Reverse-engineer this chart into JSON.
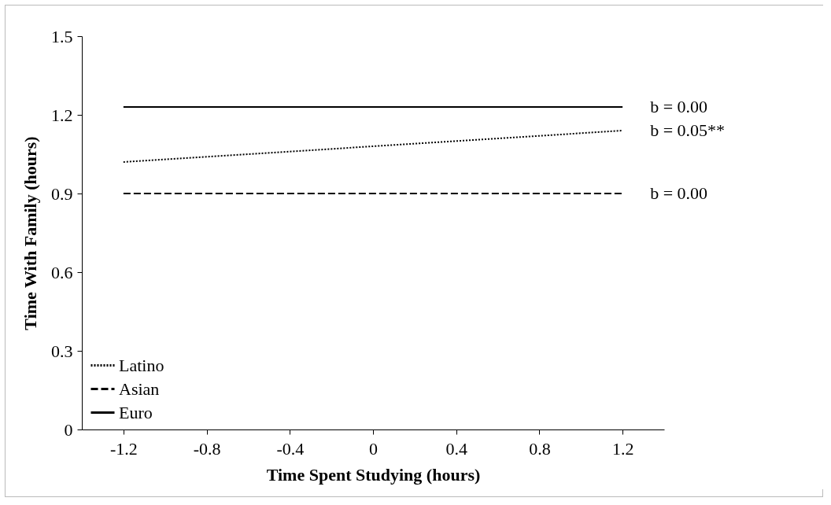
{
  "chart_data": {
    "type": "line",
    "xlabel": "Time Spent Studying (hours)",
    "ylabel": "Time With Family (hours)",
    "categories": [
      "-1.2",
      "-0.8",
      "-0.4",
      "0",
      "0.4",
      "0.8",
      "1.2"
    ],
    "series": [
      {
        "name": "Latino",
        "color": "#000000",
        "line_style": "dotted",
        "values": [
          1.02,
          1.04,
          1.06,
          1.08,
          1.1,
          1.12,
          1.14
        ]
      },
      {
        "name": "Asian",
        "color": "#000000",
        "line_style": "dashed",
        "values": [
          0.9,
          0.9,
          0.9,
          0.9,
          0.9,
          0.9,
          0.9
        ]
      },
      {
        "name": "Euro",
        "color": "#000000",
        "line_style": "solid",
        "values": [
          1.23,
          1.23,
          1.23,
          1.23,
          1.23,
          1.23,
          1.23
        ]
      }
    ],
    "ylim": [
      0,
      1.5
    ],
    "yticks": [
      0,
      0.3,
      0.6,
      0.9,
      1.2,
      1.5
    ],
    "legend": "bottom left",
    "annotations": [
      {
        "text": "b = 0.00",
        "x": "1.2",
        "y": 1.23
      },
      {
        "text": "b = 0.05**",
        "x": "1.2",
        "y": 1.14
      },
      {
        "text": "b = 0.00",
        "x": "1.2",
        "y": 0.9
      }
    ]
  }
}
